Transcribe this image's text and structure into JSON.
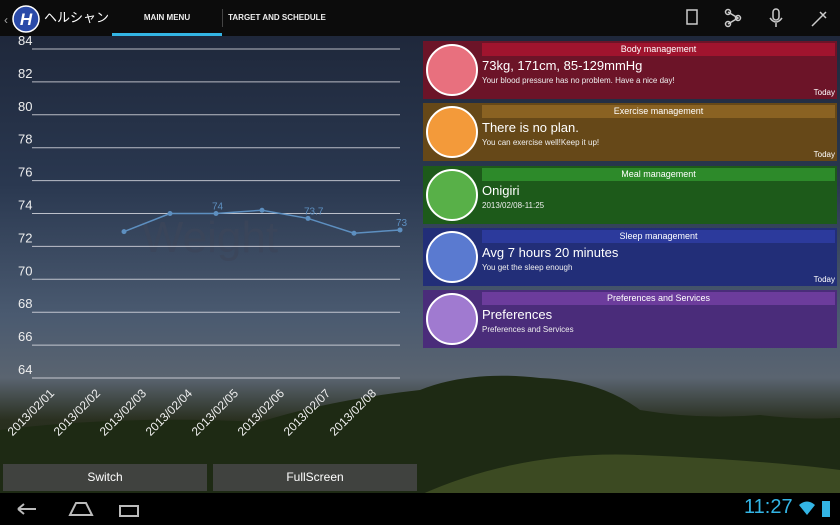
{
  "app": {
    "title": "ヘルシャン",
    "tabs": [
      "MAIN MENU",
      "TARGET AND SCHEDULE"
    ]
  },
  "chart_data": {
    "type": "line",
    "title": "Weight",
    "categories": [
      "2013/02/01",
      "2013/02/02",
      "2013/02/03",
      "2013/02/04",
      "2013/02/05",
      "2013/02/06",
      "2013/02/07",
      "2013/02/08"
    ],
    "values": [
      null,
      72.9,
      74.0,
      74.0,
      74.2,
      73.7,
      72.8,
      73.0
    ],
    "value_labels": [
      null,
      null,
      null,
      "74",
      null,
      "73.7",
      null,
      "73"
    ],
    "color": "#5d8fc0",
    "ylim": [
      64,
      84
    ],
    "yticks": [
      64,
      66,
      68,
      70,
      72,
      74,
      76,
      78,
      80,
      82,
      84
    ],
    "grid": true
  },
  "cards": [
    {
      "header": "Body management",
      "title": "73kg, 171cm, 85-129mmHg",
      "subtitle": "Your blood pressure has no problem. Have a nice day!",
      "date": "Today"
    },
    {
      "header": "Exercise management",
      "title": "There is no plan.",
      "subtitle": "You can exercise well!Keep it up!",
      "date": "Today"
    },
    {
      "header": "Meal management",
      "title": "Onigiri",
      "subtitle": "2013/02/08-11:25"
    },
    {
      "header": "Sleep management",
      "title": "Avg 7 hours 20 minutes",
      "subtitle": "You get the sleep enough",
      "date": "Today"
    },
    {
      "header": "Preferences and Services",
      "title": "Preferences",
      "subtitle": "Preferences and Services"
    }
  ],
  "buttons": [
    "Switch",
    "FullScreen"
  ],
  "status": {
    "time": "11:27"
  }
}
